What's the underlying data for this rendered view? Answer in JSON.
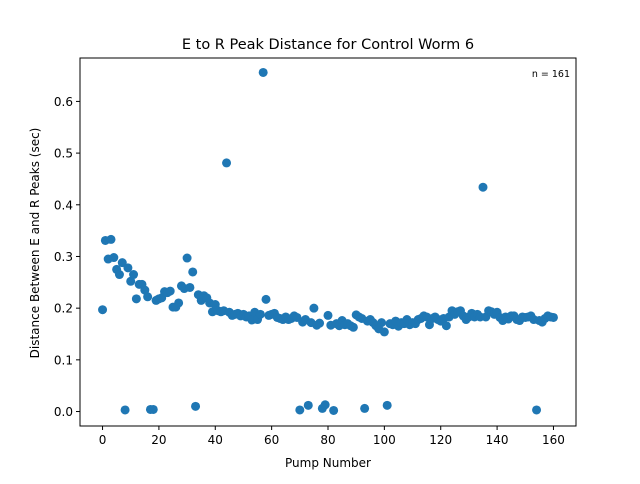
{
  "chart_data": {
    "type": "scatter",
    "title": "E to R Peak Distance for Control Worm 6",
    "xlabel": "Pump Number",
    "ylabel": "Distance Between E and R Peaks (sec)",
    "annotation": "n = 161",
    "xlim": [
      -8,
      168
    ],
    "ylim": [
      -0.028,
      0.684
    ],
    "xticks": [
      0,
      20,
      40,
      60,
      80,
      100,
      120,
      140,
      160
    ],
    "xtick_labels": [
      "0",
      "20",
      "40",
      "60",
      "80",
      "100",
      "120",
      "140",
      "160"
    ],
    "yticks": [
      0.0,
      0.1,
      0.2,
      0.3,
      0.4,
      0.5,
      0.6
    ],
    "ytick_labels": [
      "0.0",
      "0.1",
      "0.2",
      "0.3",
      "0.4",
      "0.5",
      "0.6"
    ],
    "grid": false,
    "marker_color": "#1f77b4",
    "series": [
      {
        "x": [
          0,
          1,
          2,
          3,
          4,
          5,
          6,
          7,
          8,
          9,
          10,
          11,
          12,
          13,
          14,
          15,
          16,
          17,
          18,
          19,
          20,
          21,
          22,
          23,
          24,
          25,
          26,
          27,
          28,
          29,
          30,
          31,
          32,
          33,
          34,
          35,
          36,
          37,
          38,
          39,
          40,
          41,
          42,
          43,
          44,
          45,
          46,
          47,
          48,
          49,
          50,
          51,
          52,
          53,
          54,
          55,
          56,
          57,
          58,
          59,
          60,
          61,
          62,
          63,
          64,
          65,
          66,
          67,
          68,
          69,
          70,
          71,
          72,
          73,
          74,
          75,
          76,
          77,
          78,
          79,
          80,
          81,
          82,
          83,
          84,
          85,
          86,
          87,
          88,
          89,
          90,
          91,
          92,
          93,
          94,
          95,
          96,
          97,
          98,
          99,
          100,
          101,
          102,
          103,
          104,
          105,
          106,
          107,
          108,
          109,
          110,
          111,
          112,
          113,
          114,
          115,
          116,
          117,
          118,
          119,
          120,
          121,
          122,
          123,
          124,
          125,
          126,
          127,
          128,
          129,
          130,
          131,
          132,
          133,
          134,
          135,
          136,
          137,
          138,
          139,
          140,
          141,
          142,
          143,
          144,
          145,
          146,
          147,
          148,
          149,
          150,
          151,
          152,
          153,
          154,
          155,
          156,
          157,
          158,
          159,
          160
        ],
        "y": [
          0.197,
          0.331,
          0.295,
          0.333,
          0.298,
          0.275,
          0.265,
          0.288,
          0.003,
          0.278,
          0.252,
          0.265,
          0.218,
          0.246,
          0.246,
          0.235,
          0.222,
          0.004,
          0.004,
          0.215,
          0.218,
          0.22,
          0.232,
          0.23,
          0.233,
          0.202,
          0.202,
          0.21,
          0.243,
          0.238,
          0.297,
          0.24,
          0.27,
          0.01,
          0.226,
          0.215,
          0.224,
          0.22,
          0.21,
          0.193,
          0.207,
          0.195,
          0.193,
          0.195,
          0.481,
          0.192,
          0.186,
          0.188,
          0.19,
          0.185,
          0.188,
          0.183,
          0.185,
          0.177,
          0.192,
          0.178,
          0.188,
          0.656,
          0.217,
          0.186,
          0.188,
          0.19,
          0.182,
          0.18,
          0.178,
          0.183,
          0.178,
          0.18,
          0.185,
          0.182,
          0.003,
          0.173,
          0.178,
          0.012,
          0.172,
          0.2,
          0.167,
          0.171,
          0.006,
          0.013,
          0.186,
          0.167,
          0.002,
          0.17,
          0.166,
          0.176,
          0.168,
          0.17,
          0.166,
          0.163,
          0.187,
          0.183,
          0.18,
          0.006,
          0.175,
          0.178,
          0.172,
          0.166,
          0.16,
          0.172,
          0.154,
          0.012,
          0.17,
          0.168,
          0.175,
          0.165,
          0.172,
          0.17,
          0.178,
          0.168,
          0.172,
          0.17,
          0.178,
          0.18,
          0.185,
          0.183,
          0.168,
          0.18,
          0.183,
          0.178,
          0.175,
          0.18,
          0.166,
          0.183,
          0.195,
          0.188,
          0.193,
          0.195,
          0.185,
          0.178,
          0.183,
          0.19,
          0.183,
          0.188,
          0.183,
          0.434,
          0.183,
          0.195,
          0.193,
          0.188,
          0.192,
          0.182,
          0.176,
          0.183,
          0.179,
          0.185,
          0.185,
          0.178,
          0.176,
          0.183,
          0.182,
          0.183,
          0.185,
          0.178,
          0.003,
          0.176,
          0.173,
          0.18,
          0.185,
          0.183,
          0.182
        ]
      }
    ]
  }
}
